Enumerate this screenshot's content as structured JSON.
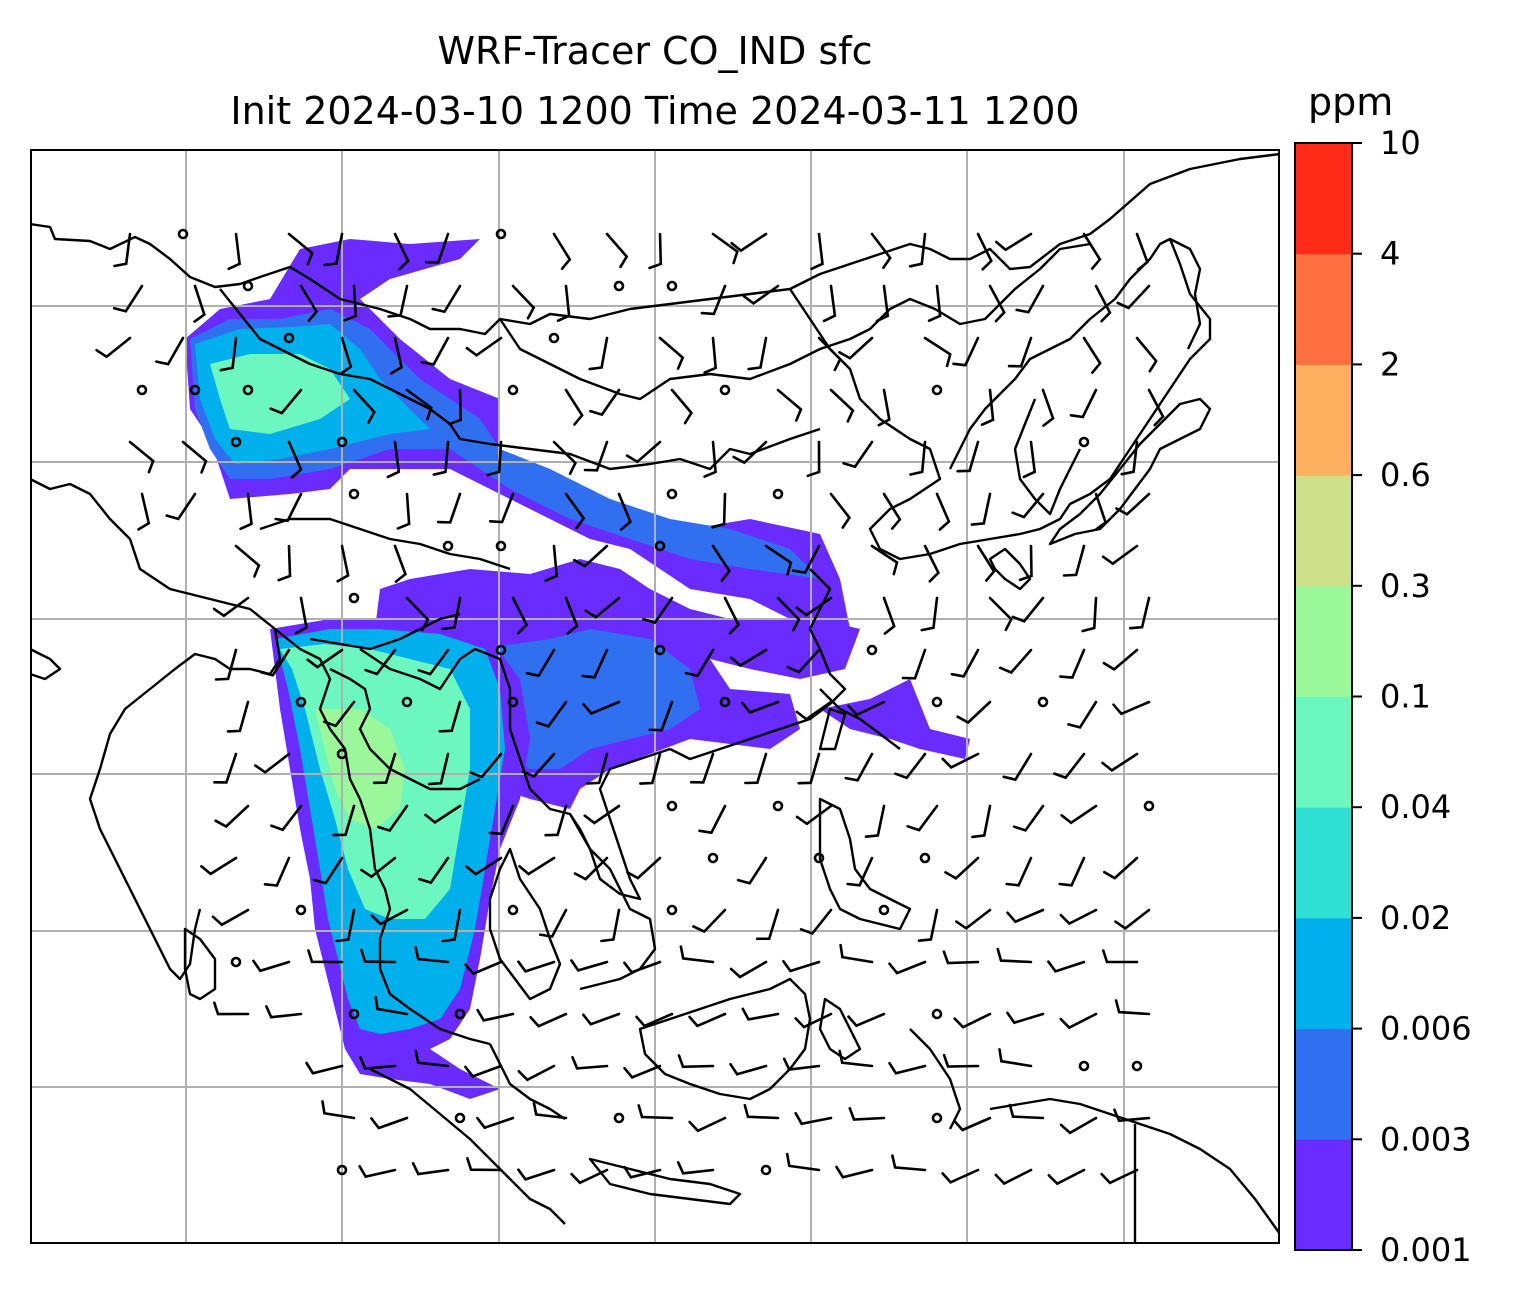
{
  "title": {
    "line1": "WRF-Tracer CO_IND sfc",
    "line2": "Init 2024-03-10 1200 Time 2024-03-11 1200"
  },
  "colorbar": {
    "unit": "ppm",
    "levels": [
      "0.001",
      "0.003",
      "0.006",
      "0.02",
      "0.04",
      "0.1",
      "0.3",
      "0.6",
      "2",
      "4",
      "10"
    ],
    "colors": [
      "#6a2bff",
      "#3070f0",
      "#00b0ec",
      "#30e0d4",
      "#6cf7c0",
      "#9af79a",
      "#cfe08a",
      "#fdb060",
      "#ff7040",
      "#ff2a18"
    ]
  },
  "map": {
    "tracer_fill_colors": {
      "low": "#6a2bff",
      "low_mid": "#3070f0",
      "mid": "#00b0ec",
      "mid2": "#30e0d4",
      "high": "#6cf7c0",
      "higher": "#9af79a"
    },
    "coastline_color": "#000000",
    "gridline_color": "#b0b0b0",
    "wind_barb_color": "#000000"
  }
}
